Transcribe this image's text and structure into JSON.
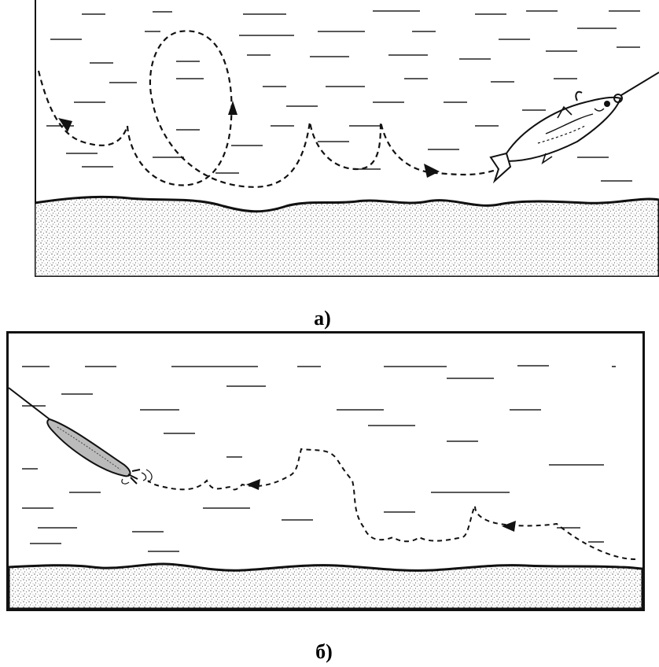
{
  "figure": {
    "caption_a": "а)",
    "caption_b": "б)"
  },
  "colors": {
    "ink": "#111111",
    "water": "#ffffff",
    "sand_dot": "#555555"
  },
  "icons": {
    "panel_a_subject": "fish-icon",
    "panel_b_subject": "spoon-lure-icon"
  }
}
